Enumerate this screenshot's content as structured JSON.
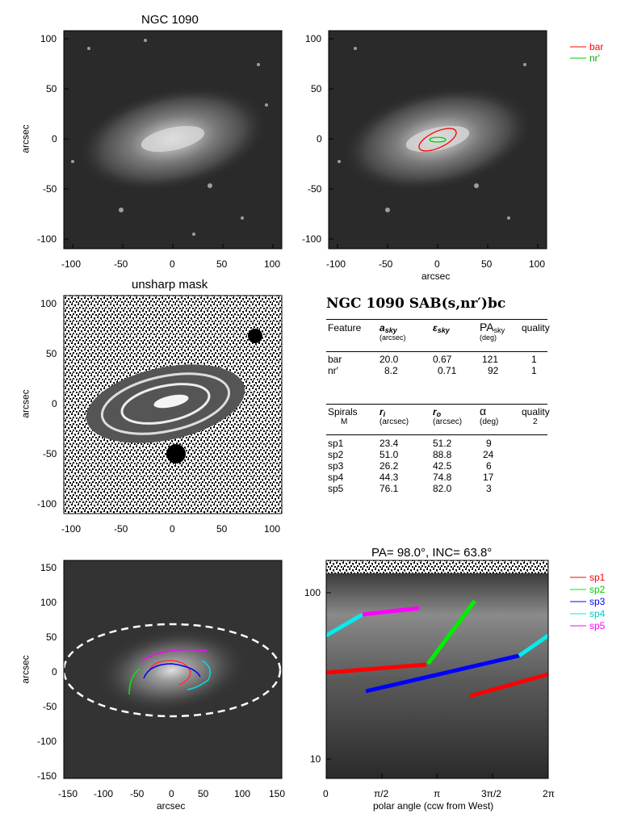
{
  "panels": {
    "p1": {
      "title": "NGC 1090",
      "ylabel": "arcsec",
      "xticks": [
        "-100",
        "-50",
        "0",
        "50",
        "100"
      ],
      "yticks": [
        "100",
        "50",
        "0",
        "-50",
        "-100"
      ]
    },
    "p2": {
      "xlabel": "arcsec",
      "xticks": [
        "-100",
        "-50",
        "0",
        "50",
        "100"
      ],
      "yticks": [
        "100",
        "50",
        "0",
        "-50",
        "-100"
      ],
      "legend": [
        {
          "label": "bar",
          "color": "#ff0000"
        },
        {
          "label": "nr′",
          "color": "#00cc00"
        }
      ]
    },
    "p3": {
      "title": "unsharp mask",
      "ylabel": "arcsec",
      "xticks": [
        "-100",
        "-50",
        "0",
        "50",
        "100"
      ],
      "yticks": [
        "100",
        "50",
        "0",
        "-50",
        "-100"
      ]
    },
    "p5": {
      "xlabel": "arcsec",
      "ylabel": "arcsec",
      "xticks": [
        "-150",
        "-100",
        "-50",
        "0",
        "50",
        "100",
        "150"
      ],
      "yticks": [
        "150",
        "100",
        "50",
        "0",
        "-50",
        "-100",
        "-150"
      ]
    },
    "p6": {
      "title": "PA=  98.0°, INC=  63.8°",
      "xlabel": "polar angle (ccw from West)",
      "xticks": [
        "0",
        "π/2",
        "π",
        "3π/2",
        "2π"
      ],
      "yticks": [
        "100",
        "10"
      ],
      "legend": [
        {
          "label": "sp1",
          "color": "#ff0000"
        },
        {
          "label": "sp2",
          "color": "#00ee00"
        },
        {
          "label": "sp3",
          "color": "#0000ff"
        },
        {
          "label": "sp4",
          "color": "#00eeee"
        },
        {
          "label": "sp5",
          "color": "#ff00ff"
        }
      ]
    }
  },
  "table": {
    "title": "NGC 1090  SAB(s,nr′)bc",
    "feature_header": {
      "feature": "Feature",
      "a": "a",
      "a_sub": "sky",
      "a_unit": "(arcsec)",
      "e": "ε",
      "e_sub": "sky",
      "pa": "PA",
      "pa_sub": "sky",
      "pa_unit": "(deg)",
      "quality": "quality"
    },
    "features": [
      {
        "name": "bar",
        "a": "20.0",
        "e": "0.67",
        "pa": "121",
        "q": "1"
      },
      {
        "name": "nr′",
        "a": "8.2",
        "e": "0.71",
        "pa": "92",
        "q": "1"
      }
    ],
    "spiral_header": {
      "spirals": "Spirals",
      "m": "M",
      "ri": "r",
      "ri_sub": "i",
      "ri_unit": "(arcsec)",
      "ro": "r",
      "ro_sub": "o",
      "ro_unit": "(arcsec)",
      "alpha": "α",
      "alpha_unit": "(deg)",
      "quality": "quality",
      "quality_val": "2"
    },
    "spirals": [
      {
        "name": "sp1",
        "ri": "23.4",
        "ro": "51.2",
        "alpha": "9"
      },
      {
        "name": "sp2",
        "ri": "51.0",
        "ro": "88.8",
        "alpha": "24"
      },
      {
        "name": "sp3",
        "ri": "26.2",
        "ro": "42.5",
        "alpha": "6"
      },
      {
        "name": "sp4",
        "ri": "44.3",
        "ro": "74.8",
        "alpha": "17"
      },
      {
        "name": "sp5",
        "ri": "76.1",
        "ro": "82.0",
        "alpha": "3"
      }
    ]
  }
}
